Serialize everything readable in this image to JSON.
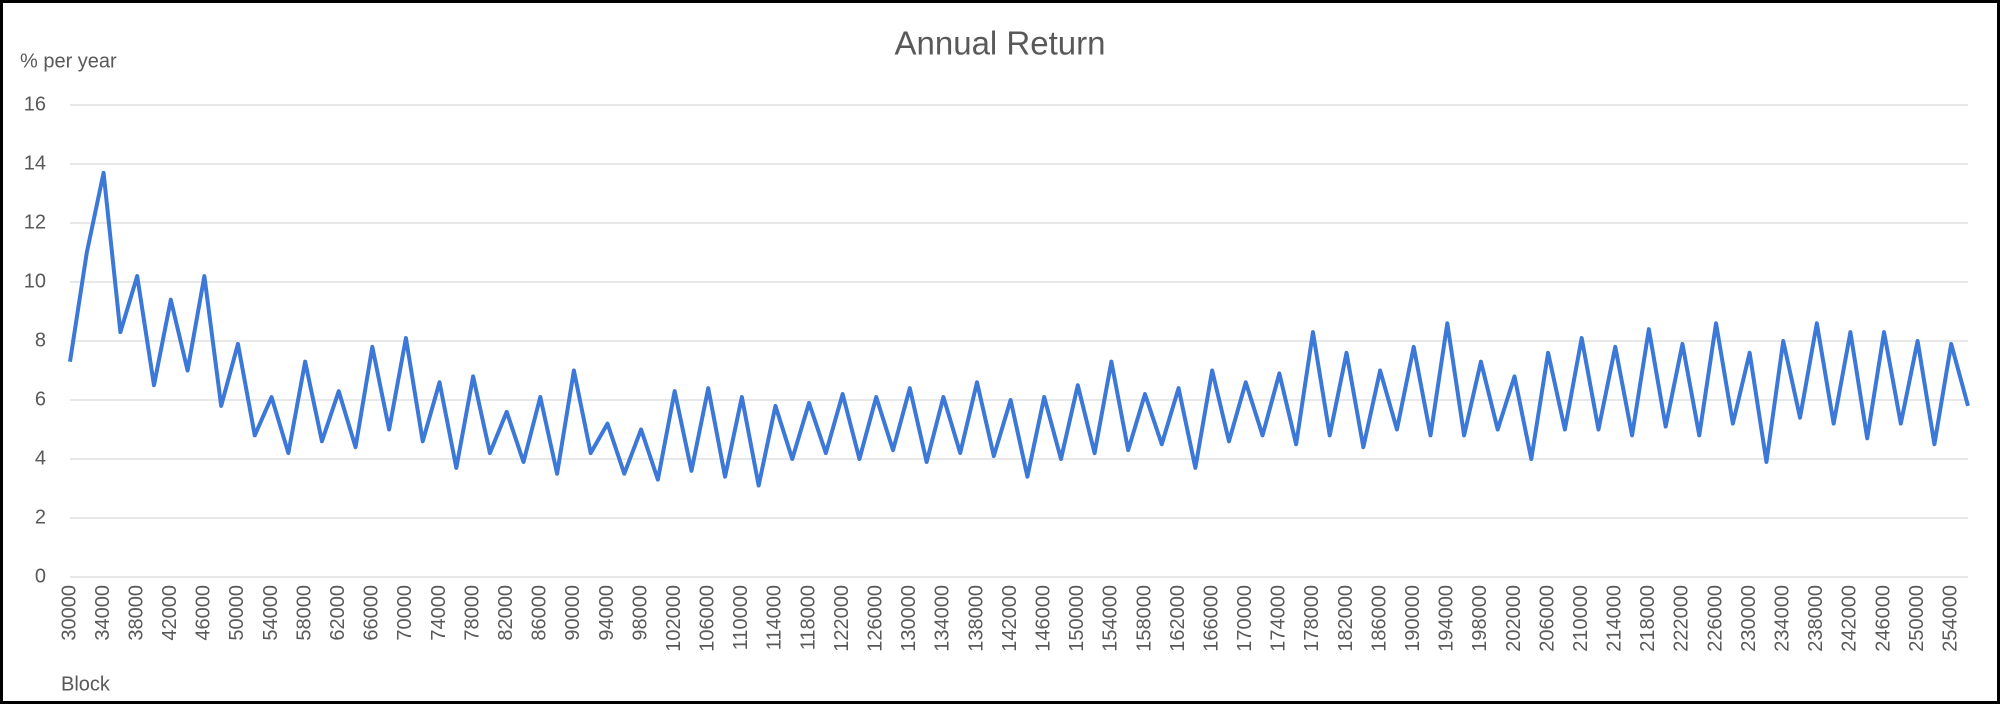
{
  "chart_data": {
    "type": "line",
    "title": "Annual Return",
    "y_label": "% per year",
    "x_label": "Block",
    "x": [
      30000,
      32000,
      34000,
      36000,
      38000,
      40000,
      42000,
      44000,
      46000,
      48000,
      50000,
      52000,
      54000,
      56000,
      58000,
      60000,
      62000,
      64000,
      66000,
      68000,
      70000,
      72000,
      74000,
      76000,
      78000,
      80000,
      82000,
      84000,
      86000,
      88000,
      90000,
      92000,
      94000,
      96000,
      98000,
      100000,
      102000,
      104000,
      106000,
      108000,
      110000,
      112000,
      114000,
      116000,
      118000,
      120000,
      122000,
      124000,
      126000,
      128000,
      130000,
      132000,
      134000,
      136000,
      138000,
      140000,
      142000,
      144000,
      146000,
      148000,
      150000,
      152000,
      154000,
      156000,
      158000,
      160000,
      162000,
      164000,
      166000,
      168000,
      170000,
      172000,
      174000,
      176000,
      178000,
      180000,
      182000,
      184000,
      186000,
      188000,
      190000,
      192000,
      194000,
      196000,
      198000,
      200000,
      202000,
      204000,
      206000,
      208000,
      210000,
      212000,
      214000,
      216000,
      218000,
      220000,
      222000,
      224000,
      226000,
      228000,
      230000,
      232000,
      234000,
      236000,
      238000,
      240000,
      242000,
      244000,
      246000,
      248000,
      250000,
      252000,
      254000,
      256000
    ],
    "series": [
      {
        "name": "Annual Return",
        "color": "#3c78d8",
        "values": [
          7.3,
          11.0,
          13.7,
          8.3,
          10.2,
          6.5,
          9.4,
          7.0,
          10.2,
          5.8,
          7.9,
          4.8,
          6.1,
          4.2,
          7.3,
          4.6,
          6.3,
          4.4,
          7.8,
          5.0,
          8.1,
          4.6,
          6.6,
          3.7,
          6.8,
          4.2,
          5.6,
          3.9,
          6.1,
          3.5,
          7.0,
          4.2,
          5.2,
          3.5,
          5.0,
          3.3,
          6.3,
          3.6,
          6.4,
          3.4,
          6.1,
          3.1,
          5.8,
          4.0,
          5.9,
          4.2,
          6.2,
          4.0,
          6.1,
          4.3,
          6.4,
          3.9,
          6.1,
          4.2,
          6.6,
          4.1,
          6.0,
          3.4,
          6.1,
          4.0,
          6.5,
          4.2,
          7.3,
          4.3,
          6.2,
          4.5,
          6.4,
          3.7,
          7.0,
          4.6,
          6.6,
          4.8,
          6.9,
          4.5,
          8.3,
          4.8,
          7.6,
          4.4,
          7.0,
          5.0,
          7.8,
          4.8,
          8.6,
          4.8,
          7.3,
          5.0,
          6.8,
          4.0,
          7.6,
          5.0,
          8.1,
          5.0,
          7.8,
          4.8,
          8.4,
          5.1,
          7.9,
          4.8,
          8.6,
          5.2,
          7.6,
          3.9,
          8.0,
          5.4,
          8.6,
          5.2,
          8.3,
          4.7,
          8.3,
          5.2,
          8.0,
          4.5,
          7.9,
          5.8
        ]
      }
    ],
    "xlim": [
      30000,
      256000
    ],
    "xticks": [
      30000,
      34000,
      38000,
      42000,
      46000,
      50000,
      54000,
      58000,
      62000,
      66000,
      70000,
      74000,
      78000,
      82000,
      86000,
      90000,
      94000,
      98000,
      102000,
      106000,
      110000,
      114000,
      118000,
      122000,
      126000,
      130000,
      134000,
      138000,
      142000,
      146000,
      150000,
      154000,
      158000,
      162000,
      166000,
      170000,
      174000,
      178000,
      182000,
      186000,
      190000,
      194000,
      198000,
      202000,
      206000,
      210000,
      214000,
      218000,
      222000,
      226000,
      230000,
      234000,
      238000,
      242000,
      246000,
      250000,
      254000
    ],
    "ylim": [
      0,
      16
    ],
    "yticks": [
      0,
      2,
      4,
      6,
      8,
      10,
      12,
      14,
      16
    ],
    "grid": true
  }
}
